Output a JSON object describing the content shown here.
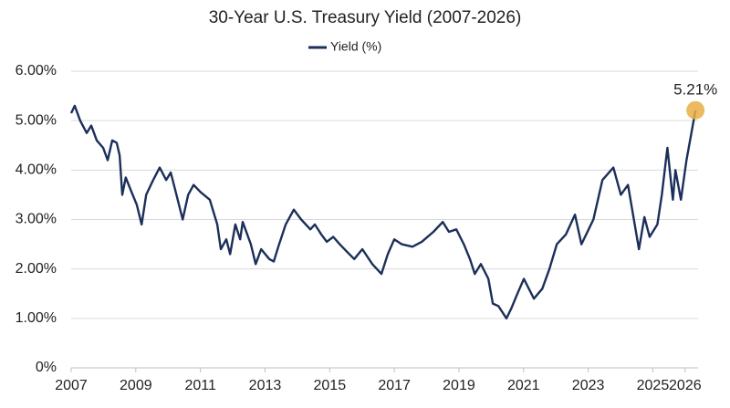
{
  "chart_data": {
    "type": "line",
    "title": "30-Year U.S. Treasury Yield (2007-2026)",
    "x": [
      2007.0,
      2007.11,
      2007.28,
      2007.48,
      2007.62,
      2007.79,
      2007.99,
      2008.13,
      2008.27,
      2008.41,
      2008.5,
      2008.58,
      2008.69,
      2008.84,
      2009.03,
      2009.18,
      2009.32,
      2009.54,
      2009.74,
      2009.94,
      2010.08,
      2010.22,
      2010.45,
      2010.62,
      2010.79,
      2011.01,
      2011.29,
      2011.52,
      2011.63,
      2011.8,
      2011.92,
      2012.08,
      2012.23,
      2012.31,
      2012.56,
      2012.71,
      2012.88,
      2013.13,
      2013.27,
      2013.41,
      2013.64,
      2013.89,
      2014.12,
      2014.4,
      2014.54,
      2014.74,
      2014.91,
      2015.11,
      2015.31,
      2015.53,
      2015.76,
      2016.01,
      2016.32,
      2016.6,
      2016.8,
      2017.0,
      2017.23,
      2017.56,
      2017.85,
      2018.21,
      2018.5,
      2018.69,
      2018.92,
      2019.15,
      2019.34,
      2019.49,
      2019.68,
      2019.91,
      2020.05,
      2020.22,
      2020.47,
      2020.62,
      2020.81,
      2021.01,
      2021.32,
      2021.58,
      2021.8,
      2022.03,
      2022.31,
      2022.59,
      2022.79,
      2023.16,
      2023.44,
      2023.78,
      2024.01,
      2024.23,
      2024.57,
      2024.74,
      2024.9,
      2025.14,
      2025.28,
      2025.45,
      2025.62,
      2025.7,
      2025.87,
      2026.04,
      2026.32
    ],
    "series": [
      {
        "name": "Yield (%)",
        "color": "#1c2f5a",
        "values": [
          5.15,
          5.3,
          5.0,
          4.75,
          4.9,
          4.6,
          4.45,
          4.2,
          4.6,
          4.55,
          4.3,
          3.5,
          3.85,
          3.6,
          3.3,
          2.9,
          3.5,
          3.8,
          4.05,
          3.8,
          3.95,
          3.6,
          3.0,
          3.5,
          3.7,
          3.55,
          3.4,
          2.9,
          2.4,
          2.6,
          2.3,
          2.9,
          2.6,
          2.95,
          2.5,
          2.1,
          2.4,
          2.2,
          2.15,
          2.45,
          2.9,
          3.2,
          3.0,
          2.8,
          2.9,
          2.7,
          2.55,
          2.65,
          2.5,
          2.35,
          2.2,
          2.4,
          2.1,
          1.9,
          2.3,
          2.6,
          2.5,
          2.45,
          2.55,
          2.75,
          2.95,
          2.75,
          2.8,
          2.5,
          2.2,
          1.9,
          2.1,
          1.8,
          1.3,
          1.25,
          1.0,
          1.2,
          1.5,
          1.8,
          1.4,
          1.6,
          2.0,
          2.5,
          2.7,
          3.1,
          2.5,
          3.0,
          3.8,
          4.05,
          3.5,
          3.7,
          2.4,
          3.05,
          2.65,
          2.9,
          3.5,
          4.45,
          3.4,
          4.0,
          3.4,
          4.2,
          5.21
        ],
        "value_labels": [
          null,
          null,
          null,
          null,
          null,
          null,
          null,
          null,
          null,
          null,
          null,
          null,
          null,
          null,
          null,
          null,
          null,
          null,
          null,
          null,
          null,
          null,
          null,
          null,
          null,
          null,
          null,
          null,
          null,
          null,
          null,
          null,
          null,
          null,
          null,
          null,
          null,
          null,
          null,
          null,
          null,
          null,
          null,
          null,
          null,
          null,
          null,
          null,
          null,
          null,
          null,
          null,
          null,
          null,
          null,
          null,
          null,
          null,
          null,
          null,
          null,
          null,
          null,
          null,
          null,
          null,
          null,
          null,
          null,
          null,
          null,
          null,
          null,
          null,
          null,
          null,
          null,
          null,
          null,
          null,
          null,
          null,
          null,
          null,
          null,
          null,
          null,
          null,
          null,
          null,
          null,
          null,
          null,
          null,
          null,
          null,
          "5.21%"
        ],
        "highlight_color": "#e9ae45"
      }
    ],
    "xlim": [
      2007,
      2026.4
    ],
    "xticks": [
      2007,
      2009,
      2011,
      2013,
      2015,
      2017,
      2019,
      2021,
      2023,
      2025,
      2026
    ],
    "ylim": [
      0,
      6
    ],
    "yticks": [
      {
        "value": 0,
        "label": "0%"
      },
      {
        "value": 1,
        "label": "1.00%"
      },
      {
        "value": 2,
        "label": "2.00%"
      },
      {
        "value": 3,
        "label": "3.00%"
      },
      {
        "value": 4,
        "label": "4.00%"
      },
      {
        "value": 5,
        "label": "5.00%"
      },
      {
        "value": 6,
        "label": "6.00%"
      }
    ],
    "grid": true,
    "legend": "top"
  }
}
